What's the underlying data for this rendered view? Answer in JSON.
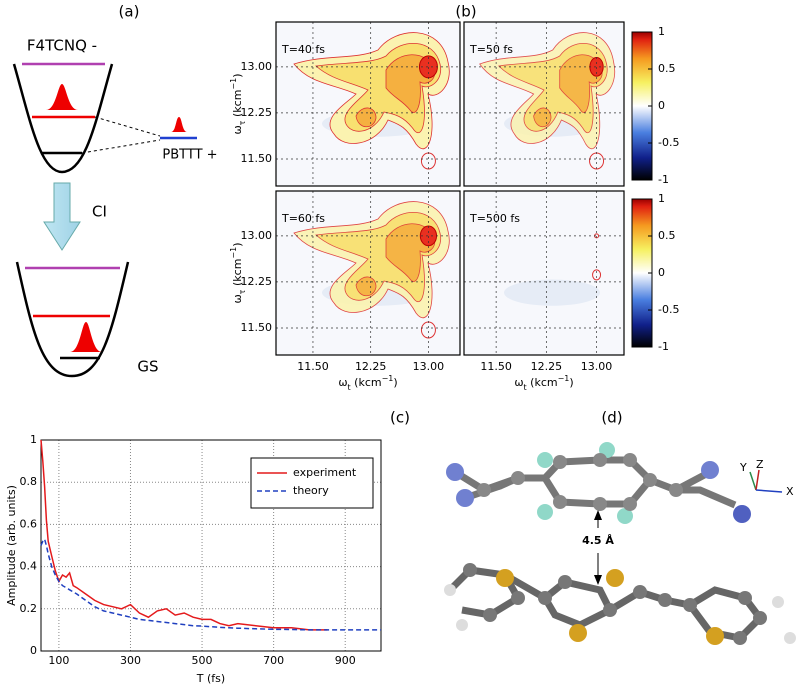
{
  "panels": {
    "a": {
      "label": "(a)",
      "top_label": "F4TCNQ -",
      "side_label": "PBTTT +",
      "arrow_label": "CI",
      "bottom_label": "GS"
    },
    "b": {
      "label": "(b)",
      "maps": [
        {
          "title": "T=40 fs"
        },
        {
          "title": "T=50 fs"
        },
        {
          "title": "T=60 fs"
        },
        {
          "title": "T=500 fs"
        }
      ],
      "xlim": [
        11.02,
        13.41
      ],
      "ylim": [
        11.06,
        13.73
      ],
      "xticks": [
        {
          "value": 11.5,
          "label": "11.50"
        },
        {
          "value": 12.25,
          "label": "12.25"
        },
        {
          "value": 13.0,
          "label": "13.00"
        }
      ],
      "yticks": [
        {
          "value": 11.5,
          "label": "11.50"
        },
        {
          "value": 12.25,
          "label": "12.25"
        },
        {
          "value": 13.0,
          "label": "13.00"
        }
      ],
      "xlabel": {
        "symbol": "ω",
        "sub": "t",
        "unit": " (kcm",
        "sup": "−1",
        "close": ")"
      },
      "ylabel": {
        "symbol": "ω",
        "sub": "τ",
        "unit": " (kcm",
        "sup": "−1",
        "close": ")"
      },
      "colorbar": {
        "lim": [
          -1,
          1
        ],
        "ticks": [
          1,
          0.5,
          0,
          -0.5,
          -1
        ]
      }
    },
    "d": {
      "label": "(d)",
      "distance": "4.5 Å",
      "axes": [
        "Y",
        "Z",
        "X"
      ]
    }
  },
  "chart_data": {
    "type": "line",
    "label": "(c)",
    "xlabel": "T (fs)",
    "ylabel": "Amplitude (arb. units)",
    "x": [
      50,
      55,
      60,
      65,
      70,
      80,
      90,
      100,
      110,
      120,
      130,
      140,
      150,
      175,
      200,
      225,
      250,
      275,
      300,
      325,
      350,
      375,
      400,
      425,
      450,
      475,
      500,
      525,
      550,
      575,
      600,
      650,
      700,
      750,
      800,
      850,
      900,
      950,
      1000
    ],
    "series": [
      {
        "name": "experiment",
        "color": "#e41a1c",
        "dash": false,
        "values": [
          1,
          0.9,
          0.78,
          0.62,
          0.52,
          0.45,
          0.38,
          0.33,
          0.36,
          0.35,
          0.37,
          0.31,
          0.3,
          0.27,
          0.24,
          0.22,
          0.21,
          0.2,
          0.22,
          0.18,
          0.16,
          0.19,
          0.2,
          0.17,
          0.18,
          0.16,
          0.15,
          0.15,
          0.13,
          0.12,
          0.13,
          0.12,
          0.11,
          0.11,
          0.1,
          0.1,
          null,
          null,
          null
        ]
      },
      {
        "name": "theory",
        "color": "#2040c0",
        "dash": true,
        "values": [
          0.5,
          0.52,
          0.53,
          0.5,
          0.46,
          0.4,
          0.36,
          0.33,
          0.31,
          0.3,
          0.29,
          0.28,
          0.27,
          0.24,
          0.21,
          0.19,
          0.18,
          0.17,
          0.16,
          0.15,
          0.145,
          0.14,
          0.135,
          0.13,
          0.125,
          0.12,
          0.118,
          0.115,
          0.112,
          0.11,
          0.108,
          0.105,
          0.103,
          0.102,
          0.1,
          0.1,
          0.1,
          0.1,
          0.1
        ]
      }
    ],
    "xlim": [
      50,
      1000
    ],
    "ylim": [
      0,
      1
    ],
    "xticks": [
      100,
      300,
      500,
      700,
      900
    ],
    "yticks": [
      0,
      0.2,
      0.4,
      0.6,
      0.8,
      1
    ],
    "grid": true,
    "legend": "upper right"
  }
}
